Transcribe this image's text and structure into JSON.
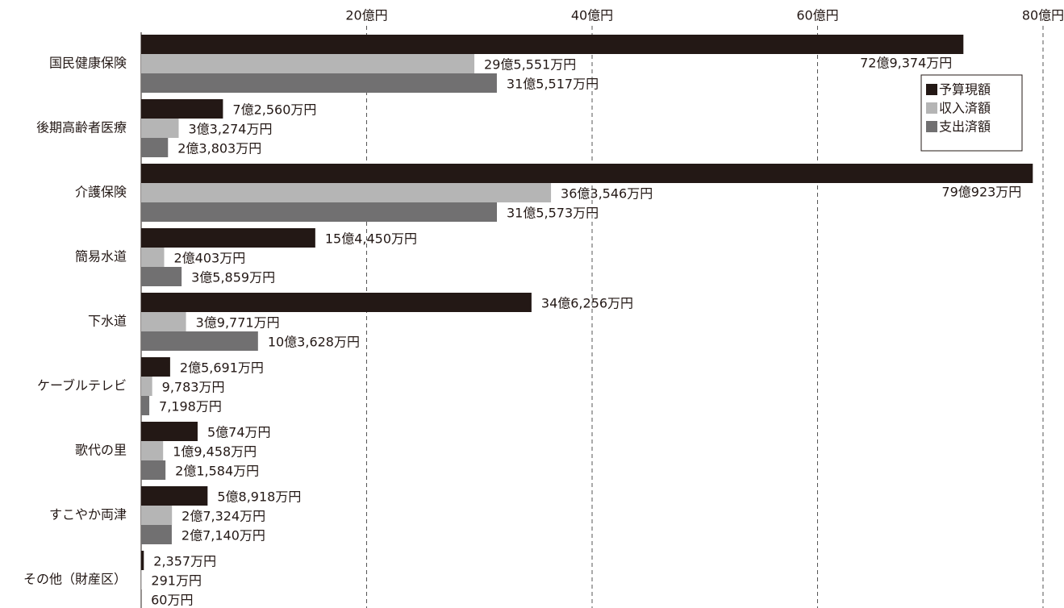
{
  "chart_data": {
    "type": "bar",
    "orientation": "horizontal",
    "categories": [
      "国民健康保険",
      "後期高齢者医療",
      "介護保険",
      "簡易水道",
      "下水道",
      "ケーブルテレビ",
      "歌代の里",
      "すこやか両津",
      "その他（財産区）"
    ],
    "series": [
      {
        "name": "予算現額",
        "color": "#231815",
        "values": [
          72.9374,
          7.256,
          79.0923,
          15.445,
          34.6256,
          2.5691,
          5.0074,
          5.8918,
          0.2357
        ],
        "value_labels": [
          "72億9,374万円",
          "7億2,560万円",
          "79億923万円",
          "15億4,450万円",
          "34億6,256万円",
          "2億5,691万円",
          "5億74万円",
          "5億8,918万円",
          "2,357万円"
        ]
      },
      {
        "name": "収入済額",
        "color": "#b5b5b5",
        "values": [
          29.5551,
          3.3274,
          36.3546,
          2.0403,
          3.9771,
          0.9783,
          1.9458,
          2.7324,
          0.0291
        ],
        "value_labels": [
          "29億5,551万円",
          "3億3,274万円",
          "36億3,546万円",
          "2億403万円",
          "3億9,771万円",
          "9,783万円",
          "1億9,458万円",
          "2億7,324万円",
          "291万円"
        ]
      },
      {
        "name": "支出済額",
        "color": "#717071",
        "values": [
          31.5517,
          2.3803,
          31.5573,
          3.5859,
          10.3628,
          0.7198,
          2.1584,
          2.714,
          0.006
        ],
        "value_labels": [
          "31億5,517万円",
          "2億3,803万円",
          "31億5,573万円",
          "3億5,859万円",
          "10億3,628万円",
          "7,198万円",
          "2億1,584万円",
          "2億7,140万円",
          "60万円"
        ]
      }
    ],
    "xlim": [
      0,
      80
    ],
    "xticks": [
      {
        "value": 20,
        "label": "20億円"
      },
      {
        "value": 40,
        "label": "40億円"
      },
      {
        "value": 60,
        "label": "60億円"
      },
      {
        "value": 80,
        "label": "80億円"
      }
    ],
    "grid": true,
    "legend_position": "upper-right"
  }
}
